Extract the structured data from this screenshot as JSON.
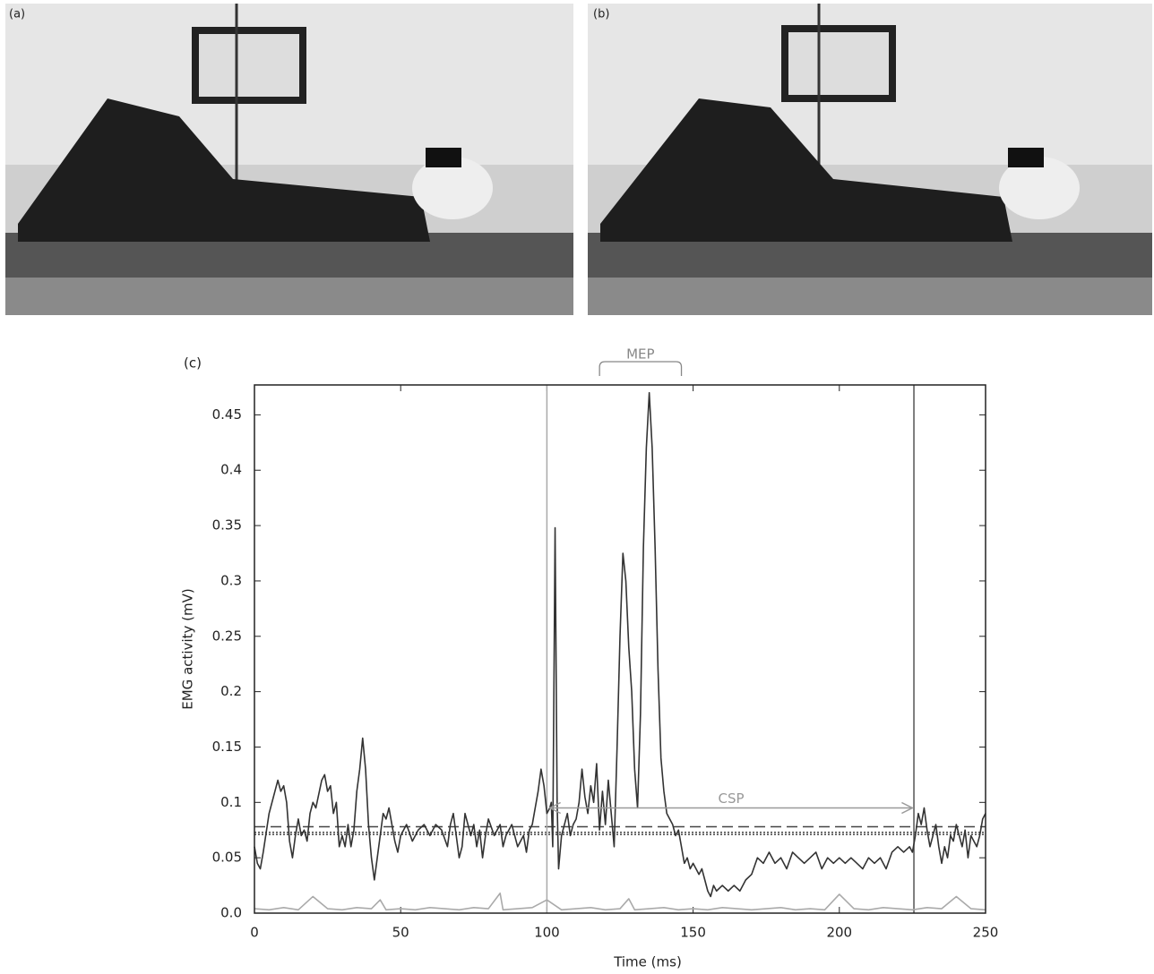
{
  "panels": {
    "a": "(a)",
    "b": "(b)"
  },
  "chart_data": {
    "type": "line",
    "panel_label": "(c)",
    "xlabel": "Time (ms)",
    "ylabel": "EMG activity (mV)",
    "xlim": [
      0,
      250
    ],
    "ylim": [
      0,
      0.477
    ],
    "xticks": [
      0,
      50,
      100,
      150,
      200,
      250
    ],
    "yticks": [
      {
        "value": 0,
        "label": "0.0"
      },
      0.05,
      0.1,
      0.15,
      0.2,
      0.25,
      0.3,
      0.35,
      0.4,
      0.45
    ],
    "series": [
      {
        "color": "#333333",
        "x": [
          0,
          1,
          2,
          3,
          5,
          7,
          8,
          9,
          10,
          11,
          12,
          13,
          14,
          15,
          16,
          17,
          18,
          19,
          20,
          21,
          23,
          24,
          25,
          26,
          27,
          28,
          29,
          30,
          31,
          32,
          33,
          34,
          35,
          36,
          37,
          38,
          39,
          40,
          41,
          42,
          43,
          44,
          45,
          46,
          47,
          48,
          49,
          50,
          52,
          54,
          56,
          58,
          60,
          62,
          64,
          66,
          67,
          68,
          69,
          70,
          71,
          72,
          73,
          74,
          75,
          76,
          77,
          78,
          79,
          80,
          82,
          84,
          85,
          86,
          88,
          90,
          91,
          92,
          93,
          94,
          95,
          96,
          97,
          98,
          99,
          100,
          101,
          101.5,
          102,
          102.8,
          103.5,
          104,
          105,
          106,
          107,
          108,
          109,
          110,
          111,
          112,
          113,
          114,
          115,
          116,
          117,
          118,
          119,
          120,
          121,
          122,
          123,
          124,
          125,
          126,
          127,
          128,
          129,
          130,
          131,
          132,
          133,
          134,
          135,
          136,
          137,
          138,
          139,
          140,
          141,
          142,
          143,
          144,
          145,
          146,
          147,
          148,
          149,
          150,
          151,
          152,
          153,
          154,
          155,
          156,
          157,
          158,
          160,
          162,
          164,
          166,
          168,
          170,
          172,
          174,
          176,
          178,
          180,
          182,
          184,
          186,
          188,
          190,
          192,
          194,
          196,
          198,
          200,
          202,
          204,
          206,
          208,
          210,
          212,
          214,
          216,
          218,
          220,
          222,
          224,
          225,
          226,
          227,
          228,
          229,
          230,
          231,
          232,
          233,
          234,
          235,
          236,
          237,
          238,
          239,
          240,
          241,
          242,
          243,
          244,
          245,
          246,
          247,
          248,
          249,
          250
        ],
        "values": [
          0.06,
          0.045,
          0.04,
          0.055,
          0.09,
          0.11,
          0.12,
          0.11,
          0.115,
          0.1,
          0.065,
          0.05,
          0.07,
          0.085,
          0.07,
          0.075,
          0.065,
          0.09,
          0.1,
          0.095,
          0.12,
          0.125,
          0.11,
          0.115,
          0.09,
          0.1,
          0.06,
          0.07,
          0.06,
          0.08,
          0.06,
          0.075,
          0.11,
          0.13,
          0.158,
          0.13,
          0.08,
          0.05,
          0.03,
          0.05,
          0.07,
          0.09,
          0.085,
          0.095,
          0.08,
          0.065,
          0.055,
          0.07,
          0.08,
          0.065,
          0.075,
          0.08,
          0.07,
          0.08,
          0.075,
          0.06,
          0.08,
          0.09,
          0.07,
          0.05,
          0.06,
          0.09,
          0.08,
          0.07,
          0.08,
          0.06,
          0.075,
          0.05,
          0.07,
          0.085,
          0.07,
          0.08,
          0.06,
          0.07,
          0.08,
          0.06,
          0.065,
          0.07,
          0.055,
          0.075,
          0.08,
          0.095,
          0.11,
          0.13,
          0.115,
          0.09,
          0.095,
          0.1,
          0.06,
          0.348,
          0.1,
          0.04,
          0.07,
          0.08,
          0.09,
          0.07,
          0.08,
          0.085,
          0.1,
          0.13,
          0.105,
          0.09,
          0.115,
          0.1,
          0.135,
          0.075,
          0.11,
          0.08,
          0.12,
          0.09,
          0.06,
          0.15,
          0.25,
          0.325,
          0.3,
          0.24,
          0.2,
          0.13,
          0.095,
          0.18,
          0.33,
          0.42,
          0.47,
          0.42,
          0.33,
          0.22,
          0.14,
          0.11,
          0.09,
          0.085,
          0.08,
          0.07,
          0.075,
          0.06,
          0.045,
          0.05,
          0.04,
          0.045,
          0.04,
          0.035,
          0.04,
          0.03,
          0.02,
          0.015,
          0.025,
          0.02,
          0.025,
          0.02,
          0.025,
          0.02,
          0.03,
          0.035,
          0.05,
          0.045,
          0.055,
          0.045,
          0.05,
          0.04,
          0.055,
          0.05,
          0.045,
          0.05,
          0.055,
          0.04,
          0.05,
          0.045,
          0.05,
          0.045,
          0.05,
          0.045,
          0.04,
          0.05,
          0.045,
          0.05,
          0.04,
          0.055,
          0.06,
          0.055,
          0.06,
          0.055,
          0.07,
          0.09,
          0.08,
          0.095,
          0.075,
          0.06,
          0.07,
          0.08,
          0.06,
          0.045,
          0.06,
          0.05,
          0.07,
          0.065,
          0.08,
          0.07,
          0.06,
          0.075,
          0.05,
          0.07,
          0.065,
          0.06,
          0.07,
          0.085,
          0.09
        ]
      },
      {
        "color": "#aaaaaa",
        "x": [
          0,
          5,
          10,
          15,
          20,
          25,
          30,
          35,
          40,
          43,
          45,
          50,
          55,
          60,
          65,
          70,
          75,
          80,
          84,
          85,
          90,
          95,
          100,
          105,
          110,
          115,
          120,
          125,
          128,
          130,
          135,
          140,
          145,
          150,
          155,
          160,
          165,
          170,
          175,
          180,
          185,
          190,
          195,
          200,
          205,
          210,
          215,
          220,
          225,
          230,
          235,
          240,
          245,
          250
        ],
        "values": [
          0.004,
          0.003,
          0.005,
          0.003,
          0.015,
          0.004,
          0.003,
          0.005,
          0.004,
          0.012,
          0.003,
          0.004,
          0.003,
          0.005,
          0.004,
          0.003,
          0.005,
          0.004,
          0.018,
          0.003,
          0.004,
          0.005,
          0.012,
          0.003,
          0.004,
          0.005,
          0.003,
          0.004,
          0.013,
          0.003,
          0.004,
          0.005,
          0.003,
          0.004,
          0.003,
          0.005,
          0.004,
          0.003,
          0.004,
          0.005,
          0.003,
          0.004,
          0.003,
          0.017,
          0.004,
          0.003,
          0.005,
          0.004,
          0.003,
          0.005,
          0.004,
          0.015,
          0.004,
          0.003
        ]
      }
    ],
    "hlines": [
      {
        "value": 0.078,
        "style": "dashed"
      },
      {
        "value": 0.073,
        "style": "dotted"
      },
      {
        "value": 0.071,
        "style": "dotted"
      }
    ],
    "vlines": [
      {
        "value": 100,
        "color": "#aaaaaa"
      },
      {
        "value": 225.5,
        "color": "#555555"
      }
    ],
    "annotations": [
      {
        "text": "MEP",
        "x": [
          118,
          146
        ]
      },
      {
        "text": "CSP",
        "x": [
          101,
          225
        ],
        "y": 0.095
      }
    ]
  }
}
